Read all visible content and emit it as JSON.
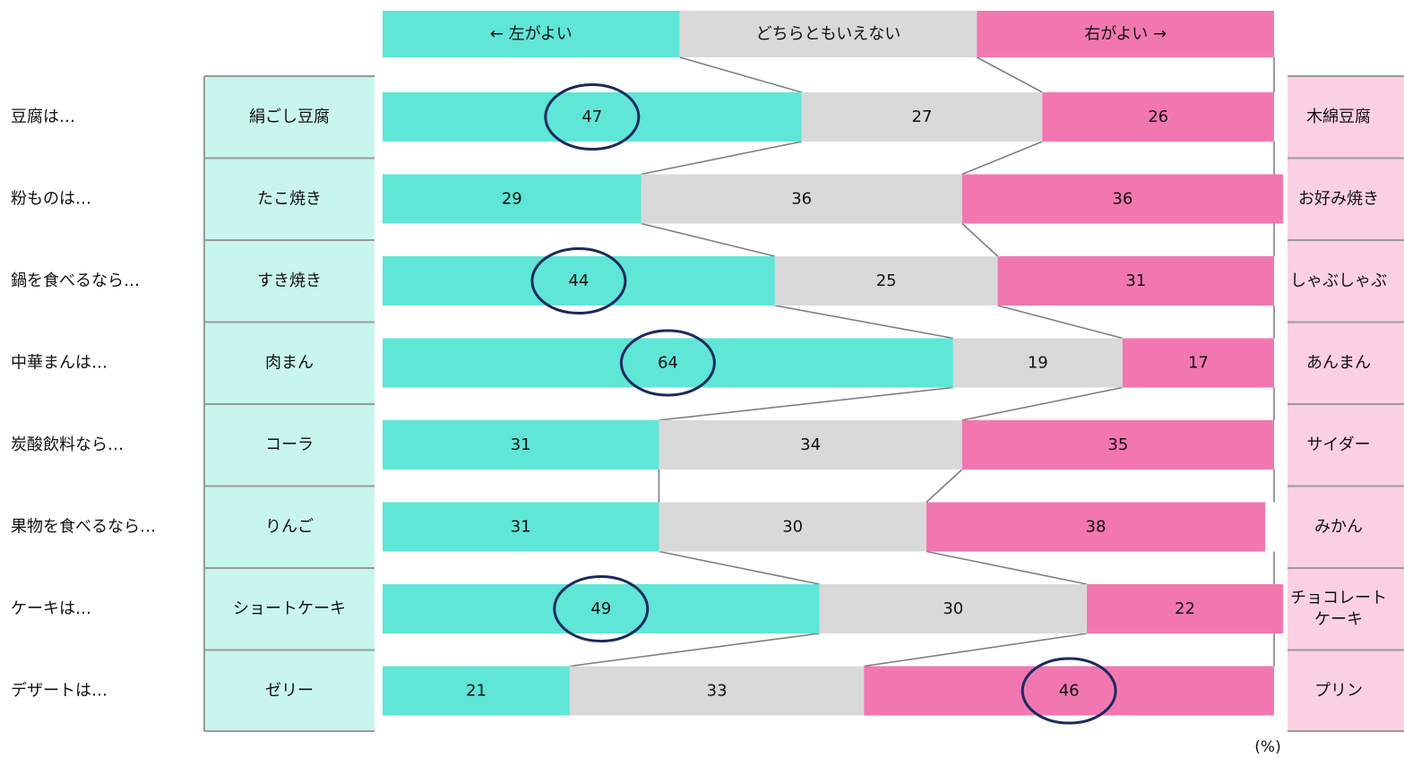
{
  "chart_data": {
    "type": "bar",
    "stacked": true,
    "orientation": "horizontal",
    "xlim": [
      0,
      100
    ],
    "unit": "(%)",
    "header": [
      "← 左がよい",
      "どちらともいえない",
      "右がよい →"
    ],
    "series": [
      {
        "name": "← 左がよい",
        "color": "#5fe6d6",
        "values": [
          47,
          29,
          44,
          64,
          31,
          31,
          49,
          21
        ]
      },
      {
        "name": "どちらともいえない",
        "color": "#d9d9d9",
        "values": [
          27,
          36,
          25,
          19,
          34,
          30,
          30,
          33
        ]
      },
      {
        "name": "右がよい →",
        "color": "#f277b0",
        "values": [
          26,
          36,
          31,
          17,
          35,
          38,
          22,
          46
        ]
      }
    ],
    "categories": [
      {
        "question": "豆腐は…",
        "left": "絹ごし豆腐",
        "right": [
          "木綿豆腐"
        ]
      },
      {
        "question": "粉ものは…",
        "left": "たこ焼き",
        "right": [
          "お好み焼き"
        ]
      },
      {
        "question": "鍋を食べるなら…",
        "left": "すき焼き",
        "right": [
          "しゃぶしゃぶ"
        ]
      },
      {
        "question": "中華まんは…",
        "left": "肉まん",
        "right": [
          "あんまん"
        ]
      },
      {
        "question": "炭酸飲料なら…",
        "left": "コーラ",
        "right": [
          "サイダー"
        ]
      },
      {
        "question": "果物を食べるなら…",
        "left": "りんご",
        "right": [
          "みかん"
        ]
      },
      {
        "question": "ケーキは…",
        "left": "ショートケーキ",
        "right": [
          "チョコレート",
          "ケーキ"
        ]
      },
      {
        "question": "デザートは…",
        "left": "ゼリー",
        "right": [
          "プリン"
        ]
      }
    ],
    "highlighted": [
      {
        "row": 0,
        "series": 0
      },
      {
        "row": 2,
        "series": 0
      },
      {
        "row": 3,
        "series": 0
      },
      {
        "row": 6,
        "series": 0
      },
      {
        "row": 7,
        "series": 2
      }
    ],
    "colors": {
      "left_label_bg": "#c9f5ef",
      "right_label_bg": "#fbd0e3",
      "connector": "#7f7f7f",
      "highlight_ring": "#1a2a5e"
    }
  }
}
